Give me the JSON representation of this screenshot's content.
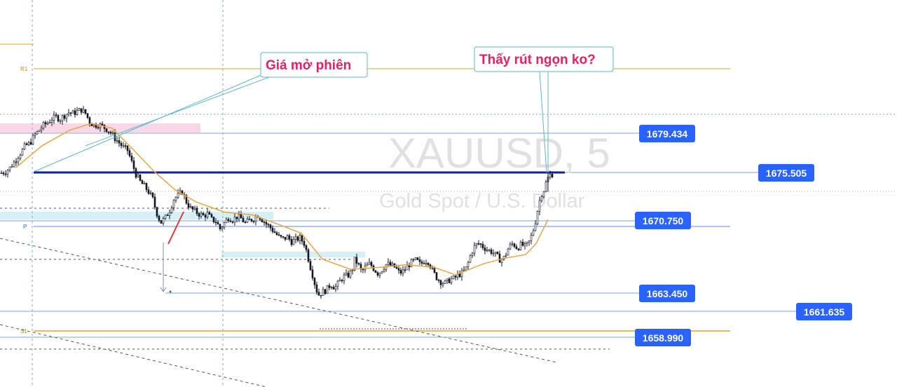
{
  "watermark": {
    "symbol": "XAUUSD, 5",
    "description": "Gold Spot / U.S. Dollar"
  },
  "annotations": {
    "session_open": "Giá mở phiên",
    "wick_question": "Thấy rút ngọn ko?"
  },
  "pivot_labels": {
    "r1": "R1",
    "p": "P",
    "s1": "S1"
  },
  "price_tags": {
    "t1679": "1679.434",
    "t1675": "1675.505",
    "t1670": "1670.750",
    "t1663": "1663.450",
    "t1661": "1661.635",
    "t1658": "1658.990"
  },
  "colors": {
    "pivot": "#e8a31e",
    "level_line": "#7fa3d9",
    "tag": "#2962ff",
    "session_line": "#0d1fa8",
    "callout_text": "#e91e63",
    "callout_border": "#5bb8c9",
    "candle": "#131722",
    "ema": "#f2a33a",
    "pink_zone": "#f8d7e6",
    "cyan_zone": "#d6f0f7"
  },
  "chart_data": {
    "type": "candlestick",
    "symbol": "XAUUSD",
    "timeframe": "5",
    "description": "Gold Spot / U.S. Dollar",
    "y_range": [
      1651,
      1689
    ],
    "levels": [
      {
        "name": "R1",
        "price": 1681.6,
        "style": "pivot"
      },
      {
        "name": "P",
        "price": 1670.2,
        "style": "pivot"
      },
      {
        "name": "S1",
        "price": 1659.1,
        "style": "pivot"
      },
      {
        "price": 1679.434,
        "style": "level"
      },
      {
        "price": 1675.505,
        "style": "session-open"
      },
      {
        "price": 1670.75,
        "style": "level"
      },
      {
        "price": 1663.45,
        "style": "level"
      },
      {
        "price": 1661.635,
        "style": "level"
      },
      {
        "price": 1658.99,
        "style": "level"
      }
    ],
    "price_path": [
      [
        0,
        1673.4
      ],
      [
        8,
        1673.6
      ],
      [
        14,
        1674.0
      ],
      [
        20,
        1674.6
      ],
      [
        26,
        1675.3
      ],
      [
        32,
        1675.9
      ],
      [
        36,
        1676.4
      ],
      [
        42,
        1676.6
      ],
      [
        50,
        1677.6
      ],
      [
        56,
        1678.1
      ],
      [
        62,
        1678.6
      ],
      [
        68,
        1678.9
      ],
      [
        74,
        1679.3
      ],
      [
        80,
        1679.5
      ],
      [
        86,
        1679.3
      ],
      [
        92,
        1679.7
      ],
      [
        98,
        1680.0
      ],
      [
        104,
        1679.9
      ],
      [
        110,
        1680.1
      ],
      [
        116,
        1680.3
      ],
      [
        122,
        1679.9
      ],
      [
        128,
        1679.0
      ],
      [
        134,
        1678.6
      ],
      [
        140,
        1678.7
      ],
      [
        146,
        1678.5
      ],
      [
        152,
        1678.2
      ],
      [
        158,
        1677.8
      ],
      [
        164,
        1677.2
      ],
      [
        170,
        1676.7
      ],
      [
        176,
        1676.2
      ],
      [
        182,
        1675.9
      ],
      [
        188,
        1674.6
      ],
      [
        194,
        1673.3
      ],
      [
        200,
        1672.5
      ],
      [
        206,
        1672.0
      ],
      [
        212,
        1671.4
      ],
      [
        218,
        1670.6
      ],
      [
        222,
        1669.5
      ],
      [
        226,
        1668.6
      ],
      [
        230,
        1668.1
      ],
      [
        236,
        1668.6
      ],
      [
        242,
        1669.4
      ],
      [
        248,
        1670.6
      ],
      [
        254,
        1671.0
      ],
      [
        260,
        1671.4
      ],
      [
        266,
        1670.3
      ],
      [
        272,
        1669.6
      ],
      [
        278,
        1669.3
      ],
      [
        284,
        1669.0
      ],
      [
        290,
        1668.8
      ],
      [
        296,
        1669.0
      ],
      [
        302,
        1668.4
      ],
      [
        308,
        1668.2
      ],
      [
        314,
        1667.4
      ],
      [
        320,
        1668.0
      ],
      [
        326,
        1668.6
      ],
      [
        332,
        1668.4
      ],
      [
        338,
        1668.7
      ],
      [
        344,
        1668.5
      ],
      [
        350,
        1668.0
      ],
      [
        356,
        1668.3
      ],
      [
        362,
        1668.5
      ],
      [
        368,
        1668.9
      ],
      [
        374,
        1668.4
      ],
      [
        380,
        1667.9
      ],
      [
        386,
        1667.5
      ],
      [
        392,
        1667.0
      ],
      [
        398,
        1666.5
      ],
      [
        404,
        1666.3
      ],
      [
        410,
        1666.5
      ],
      [
        416,
        1666.0
      ],
      [
        422,
        1666.2
      ],
      [
        428,
        1666.4
      ],
      [
        434,
        1665.8
      ],
      [
        438,
        1664.8
      ],
      [
        442,
        1663.5
      ],
      [
        446,
        1662.4
      ],
      [
        450,
        1661.2
      ],
      [
        454,
        1660.2
      ],
      [
        460,
        1660.5
      ],
      [
        466,
        1660.8
      ],
      [
        472,
        1661.4
      ],
      [
        478,
        1661.0
      ],
      [
        484,
        1661.6
      ],
      [
        490,
        1662.2
      ],
      [
        496,
        1662.3
      ],
      [
        502,
        1662.8
      ],
      [
        506,
        1664.0
      ],
      [
        510,
        1663.7
      ],
      [
        516,
        1662.7
      ],
      [
        522,
        1663.3
      ],
      [
        528,
        1663.6
      ],
      [
        534,
        1663.0
      ],
      [
        540,
        1662.5
      ],
      [
        546,
        1663.1
      ],
      [
        552,
        1663.6
      ],
      [
        558,
        1663.4
      ],
      [
        564,
        1663.2
      ],
      [
        570,
        1662.6
      ],
      [
        576,
        1662.8
      ],
      [
        582,
        1663.4
      ],
      [
        588,
        1663.8
      ],
      [
        594,
        1664.0
      ],
      [
        600,
        1663.5
      ],
      [
        606,
        1664.0
      ],
      [
        612,
        1663.8
      ],
      [
        618,
        1662.7
      ],
      [
        624,
        1662.0
      ],
      [
        630,
        1661.6
      ],
      [
        636,
        1661.5
      ],
      [
        642,
        1661.9
      ],
      [
        648,
        1662.0
      ],
      [
        654,
        1662.4
      ],
      [
        660,
        1662.6
      ],
      [
        666,
        1663.2
      ],
      [
        672,
        1664.7
      ],
      [
        678,
        1665.6
      ],
      [
        684,
        1665.8
      ],
      [
        690,
        1665.4
      ],
      [
        696,
        1665.1
      ],
      [
        702,
        1664.9
      ],
      [
        708,
        1664.5
      ],
      [
        714,
        1664.0
      ],
      [
        720,
        1664.3
      ],
      [
        726,
        1665.4
      ],
      [
        732,
        1665.8
      ],
      [
        738,
        1665.3
      ],
      [
        744,
        1665.7
      ],
      [
        750,
        1665.4
      ],
      [
        756,
        1666.1
      ],
      [
        760,
        1667.0
      ],
      [
        764,
        1668.2
      ],
      [
        768,
        1669.8
      ],
      [
        772,
        1671.1
      ],
      [
        776,
        1671.6
      ],
      [
        780,
        1672.6
      ],
      [
        784,
        1673.2
      ],
      [
        788,
        1673.3
      ]
    ],
    "ema": [
      [
        22,
        1674.0
      ],
      [
        60,
        1676.4
      ],
      [
        100,
        1678.1
      ],
      [
        130,
        1678.8
      ],
      [
        160,
        1678.3
      ],
      [
        190,
        1676.0
      ],
      [
        220,
        1673.6
      ],
      [
        250,
        1671.6
      ],
      [
        280,
        1670.3
      ],
      [
        320,
        1669.2
      ],
      [
        360,
        1668.9
      ],
      [
        400,
        1667.8
      ],
      [
        430,
        1666.9
      ],
      [
        460,
        1664.1
      ],
      [
        500,
        1663.0
      ],
      [
        540,
        1663.2
      ],
      [
        580,
        1663.5
      ],
      [
        620,
        1663.2
      ],
      [
        650,
        1662.4
      ],
      [
        690,
        1663.6
      ],
      [
        720,
        1664.2
      ],
      [
        750,
        1664.6
      ],
      [
        765,
        1665.8
      ],
      [
        782,
        1668.4
      ]
    ]
  }
}
